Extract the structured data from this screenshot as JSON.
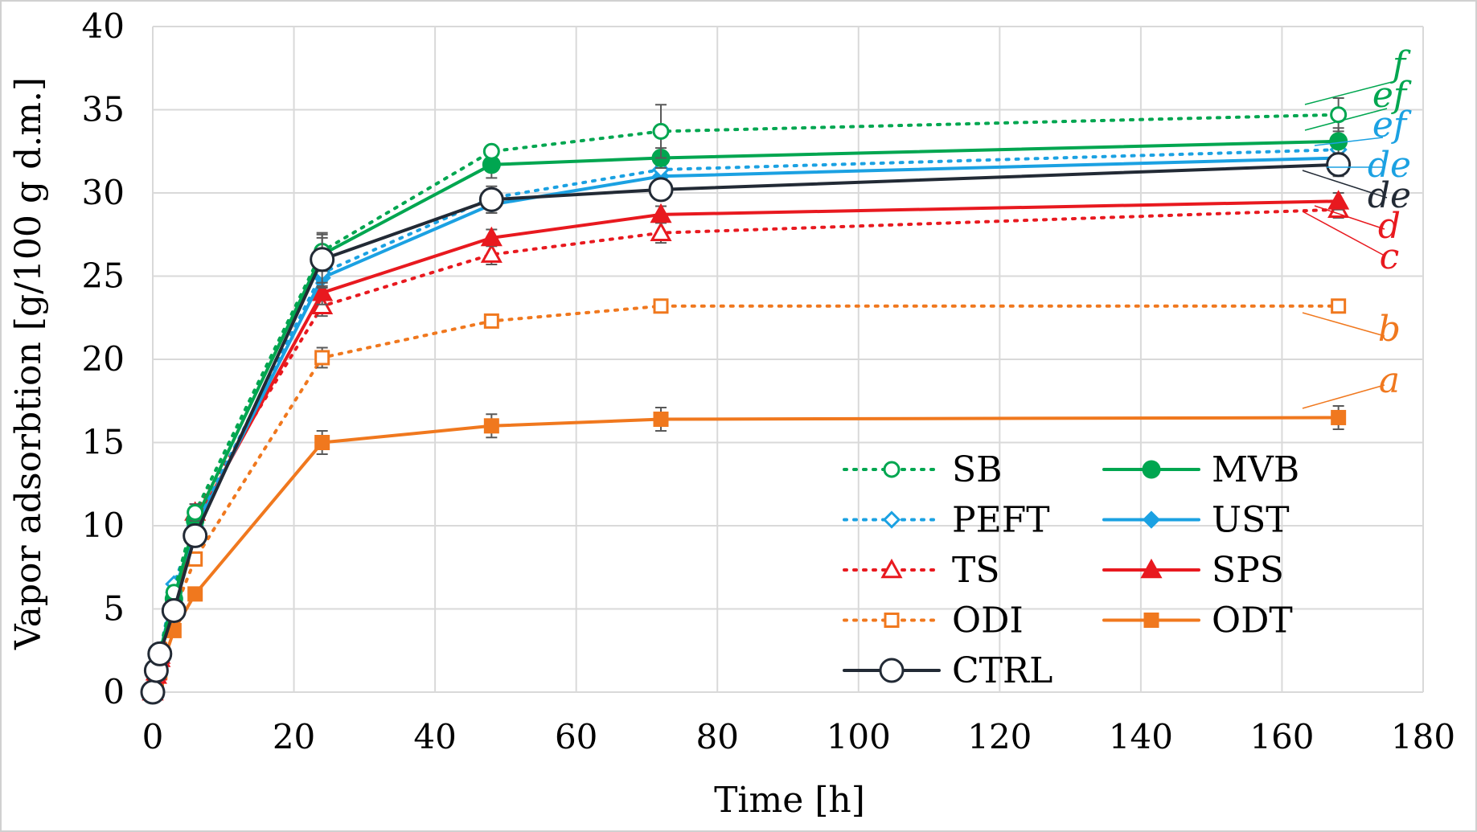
{
  "chart_data": {
    "type": "line",
    "title": "",
    "xlabel": "Time [h]",
    "ylabel": "Vapor adsorbtion [g/100 g d.m.]",
    "xlim": [
      0,
      180
    ],
    "ylim": [
      0,
      40
    ],
    "xticks": [
      0,
      20,
      40,
      60,
      80,
      100,
      120,
      140,
      160,
      180
    ],
    "yticks": [
      0,
      5,
      10,
      15,
      20,
      25,
      30,
      35,
      40
    ],
    "xtick_labels": [
      "0",
      "20",
      "40",
      "60",
      "80",
      "100",
      "120",
      "140",
      "160",
      "180"
    ],
    "ytick_labels": [
      "0",
      "5",
      "10",
      "15",
      "20",
      "25",
      "30",
      "35",
      "40"
    ],
    "grid": true,
    "legend_position": "bottom-right",
    "x": [
      0,
      0.5,
      1,
      3,
      6,
      24,
      48,
      72,
      168
    ],
    "series": [
      {
        "name": "SB",
        "color": "#00a650",
        "dash": "dotted",
        "marker": "circle-open",
        "values": [
          0,
          1.3,
          2.5,
          6.0,
          10.8,
          26.5,
          32.5,
          33.7,
          34.7
        ],
        "err": [
          0,
          0,
          0,
          0,
          0.5,
          1.0,
          0.3,
          1.6,
          1.0
        ],
        "letter": "f"
      },
      {
        "name": "MVB",
        "color": "#00a650",
        "dash": "solid",
        "marker": "circle-filled",
        "values": [
          0,
          1.3,
          2.4,
          5.6,
          10.3,
          26.3,
          31.7,
          32.1,
          33.1
        ],
        "err": [
          0,
          0,
          0,
          0,
          0.5,
          1.0,
          0.8,
          0.6,
          0.8
        ],
        "letter": "ef"
      },
      {
        "name": "PEFT",
        "color": "#1ba1e2",
        "dash": "dotted",
        "marker": "diamond-open",
        "values": [
          0,
          1.3,
          2.4,
          6.5,
          10.0,
          25.2,
          29.7,
          31.4,
          32.6
        ],
        "err": [
          0,
          0,
          0,
          0,
          0.5,
          0.6,
          0.5,
          0.6,
          0.5
        ],
        "letter": "ef"
      },
      {
        "name": "UST",
        "color": "#1ba1e2",
        "dash": "solid",
        "marker": "diamond-filled",
        "values": [
          0,
          1.3,
          2.3,
          6.0,
          9.8,
          24.9,
          29.3,
          31.0,
          32.1
        ],
        "err": [
          0,
          0,
          0,
          0,
          0.5,
          0.6,
          0.5,
          0.6,
          0.5
        ],
        "letter": "de"
      },
      {
        "name": "CTRL",
        "color": "#222a35",
        "dash": "solid",
        "marker": "circle-open-large",
        "values": [
          0,
          1.3,
          2.3,
          4.9,
          9.4,
          26.0,
          29.6,
          30.2,
          31.7
        ],
        "err": [
          0,
          0,
          0,
          0,
          0.5,
          1.6,
          0.8,
          0.6,
          0.7
        ],
        "letter": "de"
      },
      {
        "name": "SPS",
        "color": "#e8191f",
        "dash": "solid",
        "marker": "triangle-filled",
        "values": [
          0,
          1.2,
          2.2,
          5.5,
          10.1,
          24.0,
          27.3,
          28.7,
          29.5
        ],
        "err": [
          0,
          0,
          0,
          0,
          0.5,
          0.7,
          0.5,
          0.5,
          0.5
        ],
        "letter": "d"
      },
      {
        "name": "TS",
        "color": "#e8191f",
        "dash": "dotted",
        "marker": "triangle-open",
        "values": [
          0,
          1.0,
          2.0,
          5.3,
          10.8,
          23.2,
          26.3,
          27.6,
          29.0
        ],
        "err": [
          0,
          0,
          0,
          0,
          0.5,
          0.6,
          0.6,
          0.6,
          0.5
        ],
        "letter": "c"
      },
      {
        "name": "ODI",
        "color": "#f0781e",
        "dash": "dotted",
        "marker": "square-open",
        "values": [
          0,
          0.8,
          1.6,
          4.8,
          8.0,
          20.1,
          22.3,
          23.2,
          23.2
        ],
        "err": [
          0,
          0,
          0,
          0,
          0.4,
          0.6,
          0.3,
          0.3,
          0.3
        ],
        "letter": "b"
      },
      {
        "name": "ODT",
        "color": "#f0781e",
        "dash": "solid",
        "marker": "square-filled",
        "values": [
          0,
          0.5,
          1.2,
          3.7,
          5.9,
          15.0,
          16.0,
          16.4,
          16.5
        ],
        "err": [
          0,
          0,
          0,
          0,
          0.3,
          0.7,
          0.7,
          0.7,
          0.7
        ],
        "letter": "a"
      }
    ],
    "significance_letters": [
      {
        "text": "f",
        "color": "#00a650"
      },
      {
        "text": "ef",
        "color": "#00a650"
      },
      {
        "text": "ef",
        "color": "#1ba1e2"
      },
      {
        "text": "de",
        "color": "#1ba1e2"
      },
      {
        "text": "de",
        "color": "#222a35"
      },
      {
        "text": "d",
        "color": "#e8191f"
      },
      {
        "text": "c",
        "color": "#e8191f"
      },
      {
        "text": "b",
        "color": "#f0781e"
      },
      {
        "text": "a",
        "color": "#f0781e"
      }
    ],
    "legend_order": [
      "SB",
      "MVB",
      "PEFT",
      "UST",
      "TS",
      "SPS",
      "ODI",
      "ODT",
      "CTRL"
    ]
  }
}
